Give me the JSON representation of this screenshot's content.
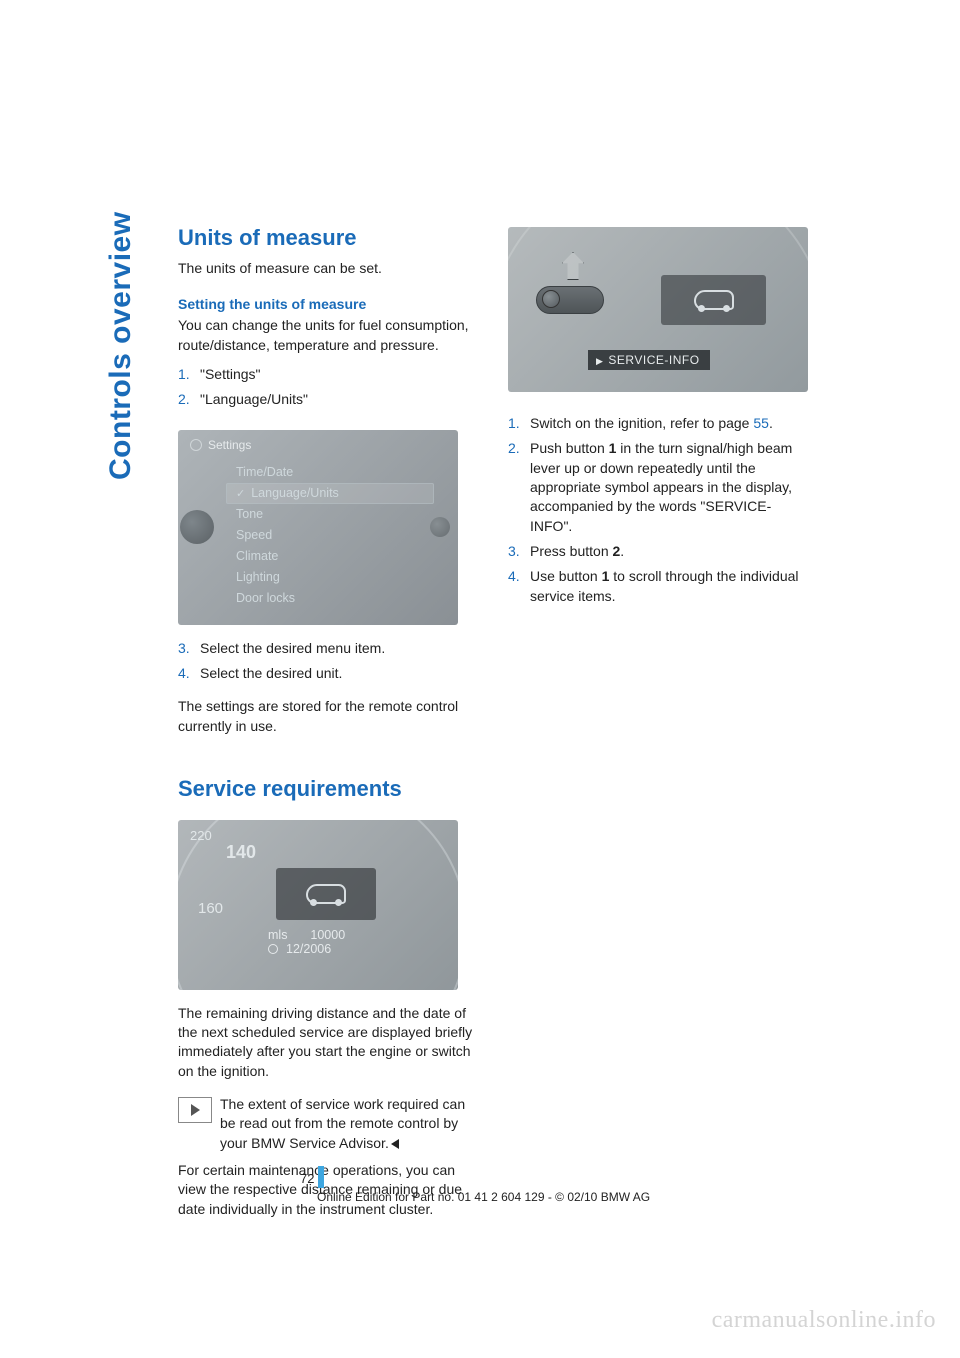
{
  "side_label": "Controls overview",
  "left": {
    "h1_units": "Units of measure",
    "p_units_intro": "The units of measure can be set.",
    "h2_setting": "Setting the units of measure",
    "p_setting_desc": "You can change the units for fuel consumption, route/distance, temperature and pressure.",
    "steps_a": [
      "\"Settings\"",
      "\"Language/Units\""
    ],
    "screenshot1": {
      "header": "Settings",
      "items": [
        "Time/Date",
        "Language/Units",
        "Tone",
        "Speed",
        "Climate",
        "Lighting",
        "Door locks"
      ],
      "selected_index": 1
    },
    "steps_b": [
      "Select the desired menu item.",
      "Select the desired unit."
    ],
    "p_stored": "The settings are stored for the remote control currently in use.",
    "h1_service": "Service requirements",
    "screenshot2": {
      "n220": "220",
      "n140": "140",
      "n160": "160",
      "mls_label": "mls",
      "mls_value": "10000",
      "date": "12/2006"
    },
    "p_remaining": "The remaining driving distance and the date of the next scheduled service are displayed briefly immediately after you start the engine or switch on the ignition.",
    "note_text_a": "The extent of service work required can be read out from the remote control by your BMW Service Advisor.",
    "p_certain": "For certain maintenance operations, you can view the respective distance remaining or due date individually in the instrument cluster."
  },
  "right": {
    "screenshot3": {
      "label": "SERVICE-INFO"
    },
    "steps": [
      {
        "pre": "Switch on the ignition, refer to page ",
        "link": "55",
        "post": "."
      },
      {
        "pre": "Push button ",
        "b": "1",
        "post": " in the turn signal/high beam lever up or down repeatedly until the appropriate symbol appears in the display, accompanied by the words \"SERVICE-INFO\"."
      },
      {
        "pre": "Press button ",
        "b": "2",
        "post": "."
      },
      {
        "pre": "Use button ",
        "b": "1",
        "post": " to scroll through the individual service items."
      }
    ]
  },
  "footer": {
    "page_num": "72",
    "edition": "Online Edition for Part no. 01 41 2 604 129 - © 02/10 BMW AG"
  },
  "watermark": "carmanualsonline.info"
}
